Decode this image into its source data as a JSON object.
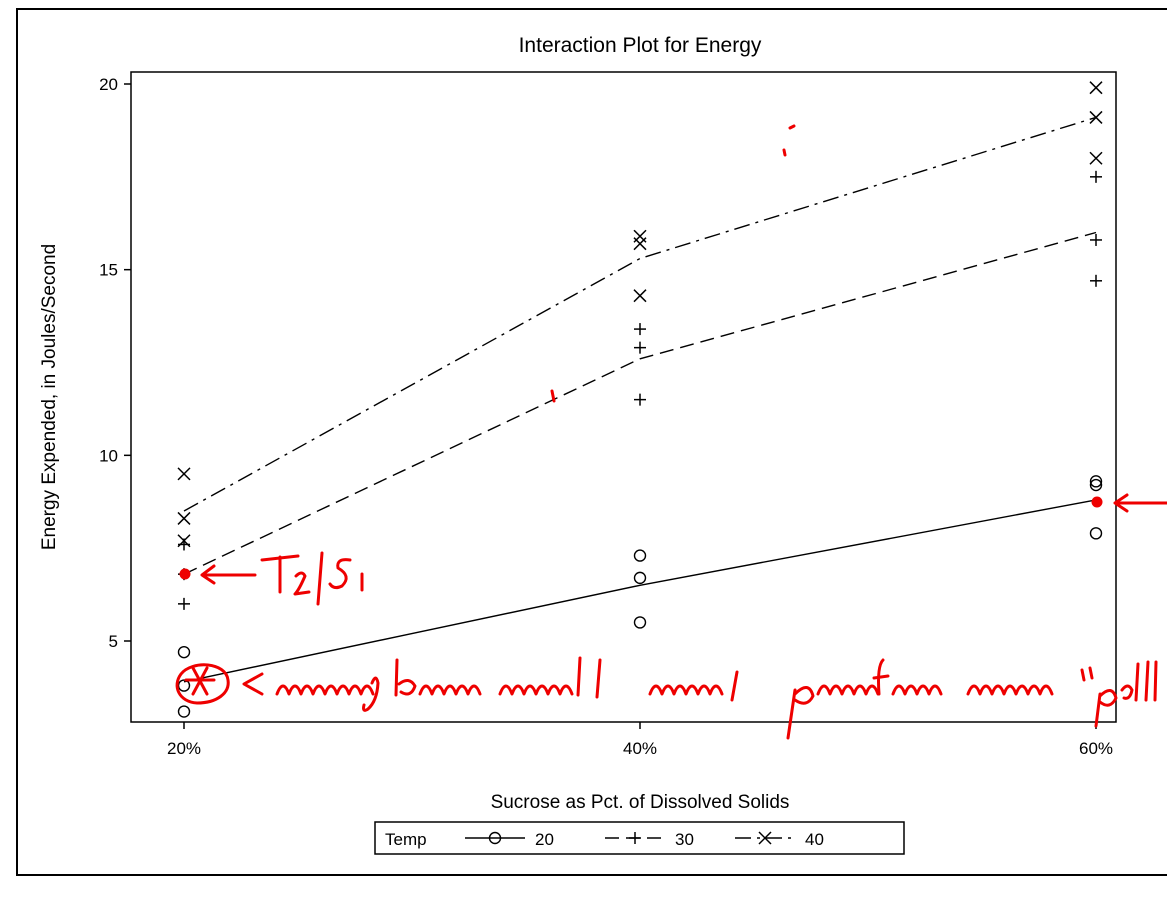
{
  "chart_data": {
    "type": "line",
    "title": "Interaction Plot for Energy",
    "xlabel": "Sucrose as Pct. of Dissolved Solids",
    "ylabel": "Energy Expended, in Joules/Second",
    "categories": [
      "20%",
      "40%",
      "60%"
    ],
    "yticks": [
      5,
      10,
      15,
      20
    ],
    "ylim": [
      2.8,
      20.4
    ],
    "legend": {
      "title": "Temp",
      "position": "bottom"
    },
    "series": [
      {
        "name": "20",
        "marker": "circle",
        "line_style": "solid",
        "means": [
          3.9,
          6.5,
          8.8
        ],
        "points": [
          [
            3.1,
            3.8,
            4.7
          ],
          [
            5.5,
            6.7,
            7.3
          ],
          [
            7.9,
            9.2,
            9.3
          ]
        ]
      },
      {
        "name": "30",
        "marker": "plus",
        "line_style": "dashed",
        "means": [
          6.8,
          12.6,
          16.0
        ],
        "points": [
          [
            6.0,
            6.8,
            7.6
          ],
          [
            11.5,
            12.9,
            13.4
          ],
          [
            14.7,
            15.8,
            17.5
          ]
        ]
      },
      {
        "name": "40",
        "marker": "x",
        "line_style": "dashdot",
        "means": [
          8.5,
          15.3,
          19.1
        ],
        "points": [
          [
            7.7,
            8.3,
            9.5
          ],
          [
            14.3,
            15.7,
            15.9
          ],
          [
            18.0,
            19.1,
            19.9
          ]
        ]
      }
    ]
  },
  "annotations": {
    "color": "#ee0000",
    "note_t2s1": "T₂ | S₁",
    "note_moving": "← moving lower would make profiles more \"parallel\""
  }
}
